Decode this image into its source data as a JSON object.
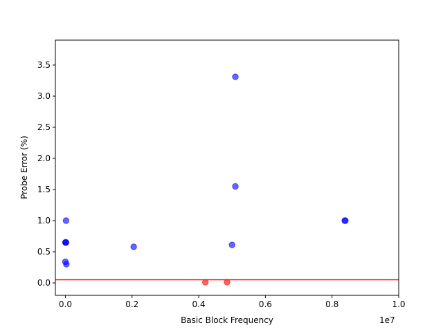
{
  "chart_data": {
    "type": "scatter",
    "title": "",
    "xlabel": "Basic Block Frequency",
    "ylabel": "Probe Error (%)",
    "x_offset_label": "1e7",
    "xlim": [
      -0.03,
      1.0
    ],
    "ylim": [
      -0.2,
      3.9
    ],
    "x_ticks": [
      0.0,
      0.2,
      0.4,
      0.6,
      0.8,
      1.0
    ],
    "x_tick_labels": [
      "0.0",
      "0.2",
      "0.4",
      "0.6",
      "0.8",
      "1.0"
    ],
    "y_ticks": [
      0.0,
      0.5,
      1.0,
      1.5,
      2.0,
      2.5,
      3.0,
      3.5
    ],
    "y_tick_labels": [
      "0.0",
      "0.5",
      "1.0",
      "1.5",
      "2.0",
      "2.5",
      "3.0",
      "3.5"
    ],
    "grid": false,
    "series": [
      {
        "color": "#0000ff",
        "x": [
          0.0,
          0.001,
          0.002,
          0.0,
          0.003,
          0.002,
          0.205,
          0.5,
          0.51,
          0.51,
          0.838,
          0.84
        ],
        "y": [
          0.65,
          0.65,
          1.0,
          0.34,
          0.3,
          0.65,
          0.58,
          0.61,
          1.55,
          3.31,
          1.0,
          1.0
        ]
      },
      {
        "color": "#ff0000",
        "x": [
          0.42,
          0.485
        ],
        "y": [
          0.01,
          0.01
        ]
      }
    ],
    "reference_line": {
      "y": 0.05,
      "color": "#ff0000"
    }
  }
}
